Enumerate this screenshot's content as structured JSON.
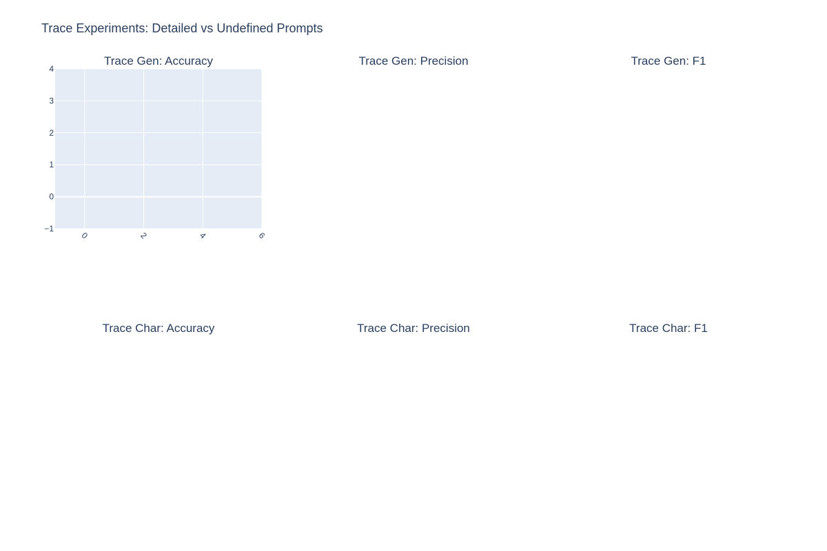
{
  "title": "Trace Experiments: Detailed vs Undefined Prompts",
  "subplot_titles": {
    "gen_accuracy": "Trace Gen: Accuracy",
    "gen_precision": "Trace Gen: Precision",
    "gen_f1": "Trace Gen: F1",
    "char_accuracy": "Trace Char: Accuracy",
    "char_precision": "Trace Char: Precision",
    "char_f1": "Trace Char: F1"
  },
  "colors": {
    "plot_bg": "#e5ecf6",
    "grid": "#ffffff",
    "text": "#2a3f5f"
  },
  "chart_data": [
    {
      "type": "line",
      "title": "Trace Gen: Accuracy",
      "series": [],
      "xlim": [
        -1,
        6
      ],
      "ylim": [
        -1,
        4
      ],
      "x_ticks": [
        0,
        2,
        4,
        6
      ],
      "y_ticks": [
        -1,
        0,
        1,
        2,
        3,
        4
      ],
      "x_tick_labels": [
        "0",
        "2",
        "4",
        "6"
      ],
      "y_tick_labels": [
        "−1",
        "0",
        "1",
        "2",
        "3",
        "4"
      ],
      "grid": true
    },
    {
      "type": "line",
      "title": "Trace Gen: Precision",
      "series": []
    },
    {
      "type": "line",
      "title": "Trace Gen: F1",
      "series": []
    },
    {
      "type": "line",
      "title": "Trace Char: Accuracy",
      "series": []
    },
    {
      "type": "line",
      "title": "Trace Char: Precision",
      "series": []
    },
    {
      "type": "line",
      "title": "Trace Char: F1",
      "series": []
    }
  ]
}
